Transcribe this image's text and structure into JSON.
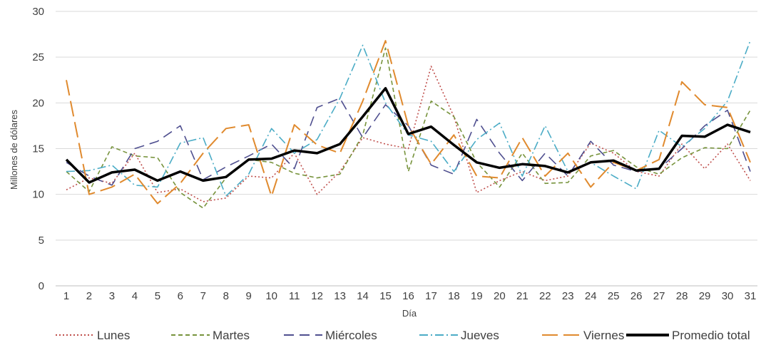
{
  "chart_data": {
    "type": "line",
    "title": "",
    "xlabel": "Día",
    "ylabel": "Millones de dólares",
    "ylim": [
      0,
      30
    ],
    "yticks": [
      0,
      5,
      10,
      15,
      20,
      25,
      30
    ],
    "grid": "horizontal",
    "legend_position": "bottom",
    "x": [
      1,
      2,
      3,
      4,
      5,
      6,
      7,
      8,
      9,
      10,
      11,
      12,
      13,
      14,
      15,
      16,
      17,
      18,
      19,
      20,
      21,
      22,
      23,
      24,
      25,
      26,
      27,
      28,
      29,
      30,
      31
    ],
    "series": [
      {
        "name": "Lunes",
        "color": "#c0504d",
        "dash": "2,3",
        "width": 1.6,
        "values": [
          10.5,
          11.8,
          11.2,
          14.5,
          10.2,
          10.6,
          9.2,
          9.6,
          12.0,
          11.8,
          14.5,
          10.0,
          12.5,
          16.2,
          15.5,
          15.0,
          24.0,
          18.5,
          10.2,
          11.5,
          12.5,
          11.5,
          12.0,
          15.6,
          14.5,
          12.5,
          12.0,
          15.5,
          12.8,
          15.5,
          11.5
        ]
      },
      {
        "name": "Martes",
        "color": "#77933c",
        "dash": "6,4",
        "width": 1.6,
        "values": [
          12.5,
          10.3,
          15.2,
          14.2,
          14.0,
          10.2,
          8.5,
          11.8,
          13.8,
          13.5,
          12.3,
          11.8,
          12.2,
          16.5,
          26.0,
          12.5,
          20.2,
          18.5,
          13.5,
          10.8,
          14.5,
          11.2,
          11.3,
          14.2,
          14.8,
          13.0,
          12.2,
          14.0,
          15.1,
          15.0,
          19.2
        ]
      },
      {
        "name": "Miércoles",
        "color": "#4f4f8f",
        "dash": "14,8",
        "width": 1.6,
        "values": [
          13.5,
          12.0,
          11.0,
          15.0,
          15.8,
          17.5,
          11.6,
          13.0,
          14.2,
          15.5,
          12.8,
          19.5,
          20.5,
          16.2,
          19.8,
          17.5,
          13.2,
          12.2,
          18.2,
          14.5,
          11.5,
          14.5,
          12.0,
          15.8,
          13.2,
          12.5,
          12.8,
          15.0,
          17.5,
          19.2,
          12.5
        ]
      },
      {
        "name": "Jueves",
        "color": "#4bacc6",
        "dash": "12,4,2,4",
        "width": 1.6,
        "values": [
          12.5,
          12.6,
          13.2,
          11.0,
          10.8,
          15.6,
          16.2,
          9.8,
          12.2,
          17.2,
          14.5,
          16.0,
          20.5,
          26.3,
          20.0,
          16.5,
          15.8,
          12.5,
          16.0,
          17.8,
          12.0,
          17.5,
          12.5,
          13.5,
          12.0,
          10.6,
          17.0,
          15.2,
          17.2,
          20.2,
          26.8
        ]
      },
      {
        "name": "Viernes",
        "color": "#e08a2e",
        "dash": "22,8",
        "width": 2.0,
        "values": [
          22.5,
          10.0,
          10.8,
          12.2,
          9.0,
          11.2,
          14.5,
          17.2,
          17.6,
          9.8,
          17.6,
          15.4,
          14.5,
          20.2,
          26.8,
          17.5,
          13.3,
          16.5,
          12.0,
          11.8,
          16.2,
          12.0,
          14.5,
          10.8,
          13.5,
          12.6,
          13.8,
          22.3,
          19.8,
          19.5,
          13.5
        ]
      },
      {
        "name": "Promedio total",
        "color": "#000000",
        "dash": "",
        "width": 3.5,
        "values": [
          13.8,
          11.3,
          12.4,
          12.7,
          11.5,
          12.5,
          11.5,
          11.9,
          13.8,
          13.9,
          14.8,
          14.5,
          15.5,
          18.5,
          21.6,
          16.6,
          17.4,
          15.4,
          13.5,
          12.9,
          13.3,
          13.1,
          12.4,
          13.5,
          13.7,
          12.6,
          12.8,
          16.4,
          16.3,
          17.6,
          16.8
        ]
      }
    ]
  }
}
